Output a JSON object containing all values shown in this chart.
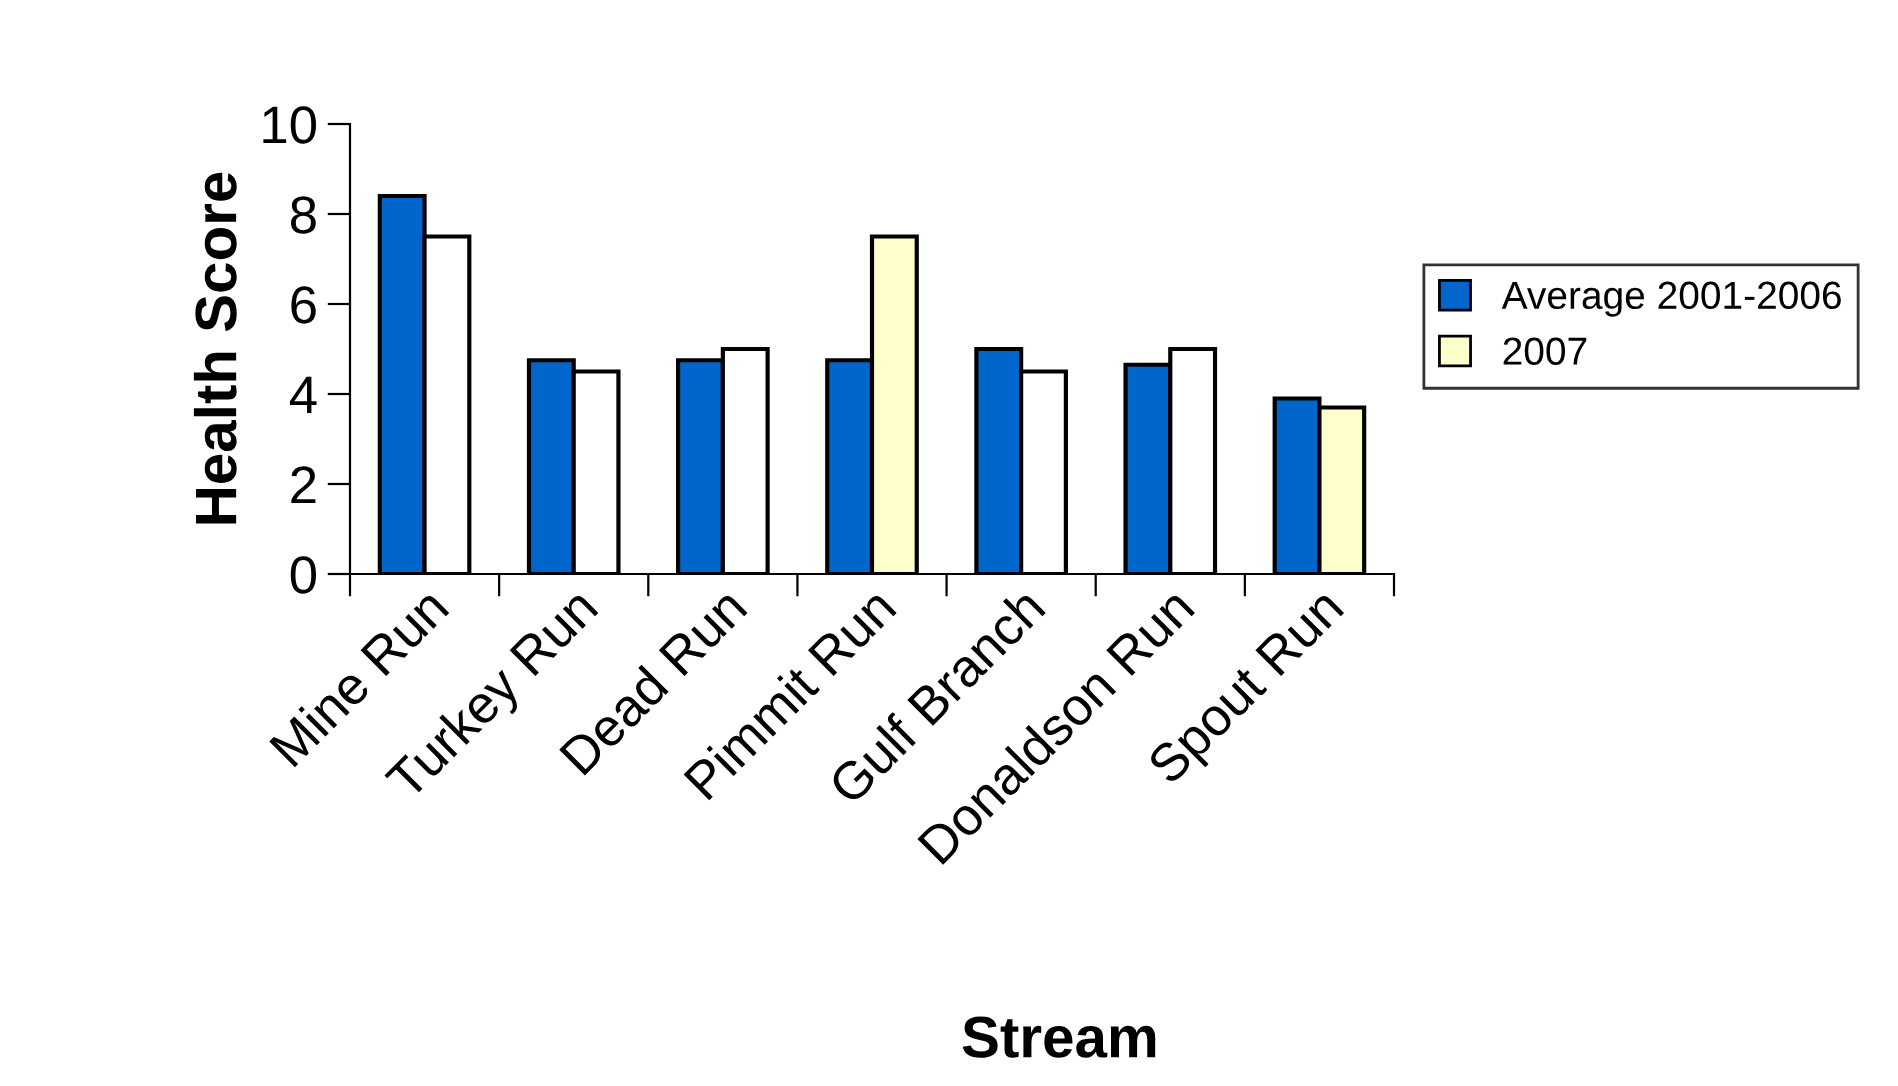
{
  "chart_data": {
    "type": "bar",
    "xlabel": "Stream",
    "ylabel": "Health Score",
    "categories": [
      "Mine Run",
      "Turkey Run",
      "Dead Run",
      "Pimmit Run",
      "Gulf Branch",
      "Donaldson Run",
      "Spout Run"
    ],
    "series": [
      {
        "name": "Average 2001-2006",
        "color": "#0066cc",
        "values": [
          8.4,
          4.75,
          4.75,
          4.75,
          5.0,
          4.65,
          3.9
        ]
      },
      {
        "name": "2007",
        "color": "#ffffcc",
        "colors": [
          "#ffffff",
          "#ffffff",
          "#ffffff",
          "#ffffcc",
          "#ffffff",
          "#ffffff",
          "#ffffcc"
        ],
        "values": [
          7.5,
          4.5,
          5.0,
          7.5,
          4.5,
          5.0,
          3.7
        ]
      }
    ],
    "ylim": [
      0,
      10
    ],
    "yticks": [
      0,
      2,
      4,
      6,
      8,
      10
    ],
    "grid": false,
    "legend": "right"
  }
}
